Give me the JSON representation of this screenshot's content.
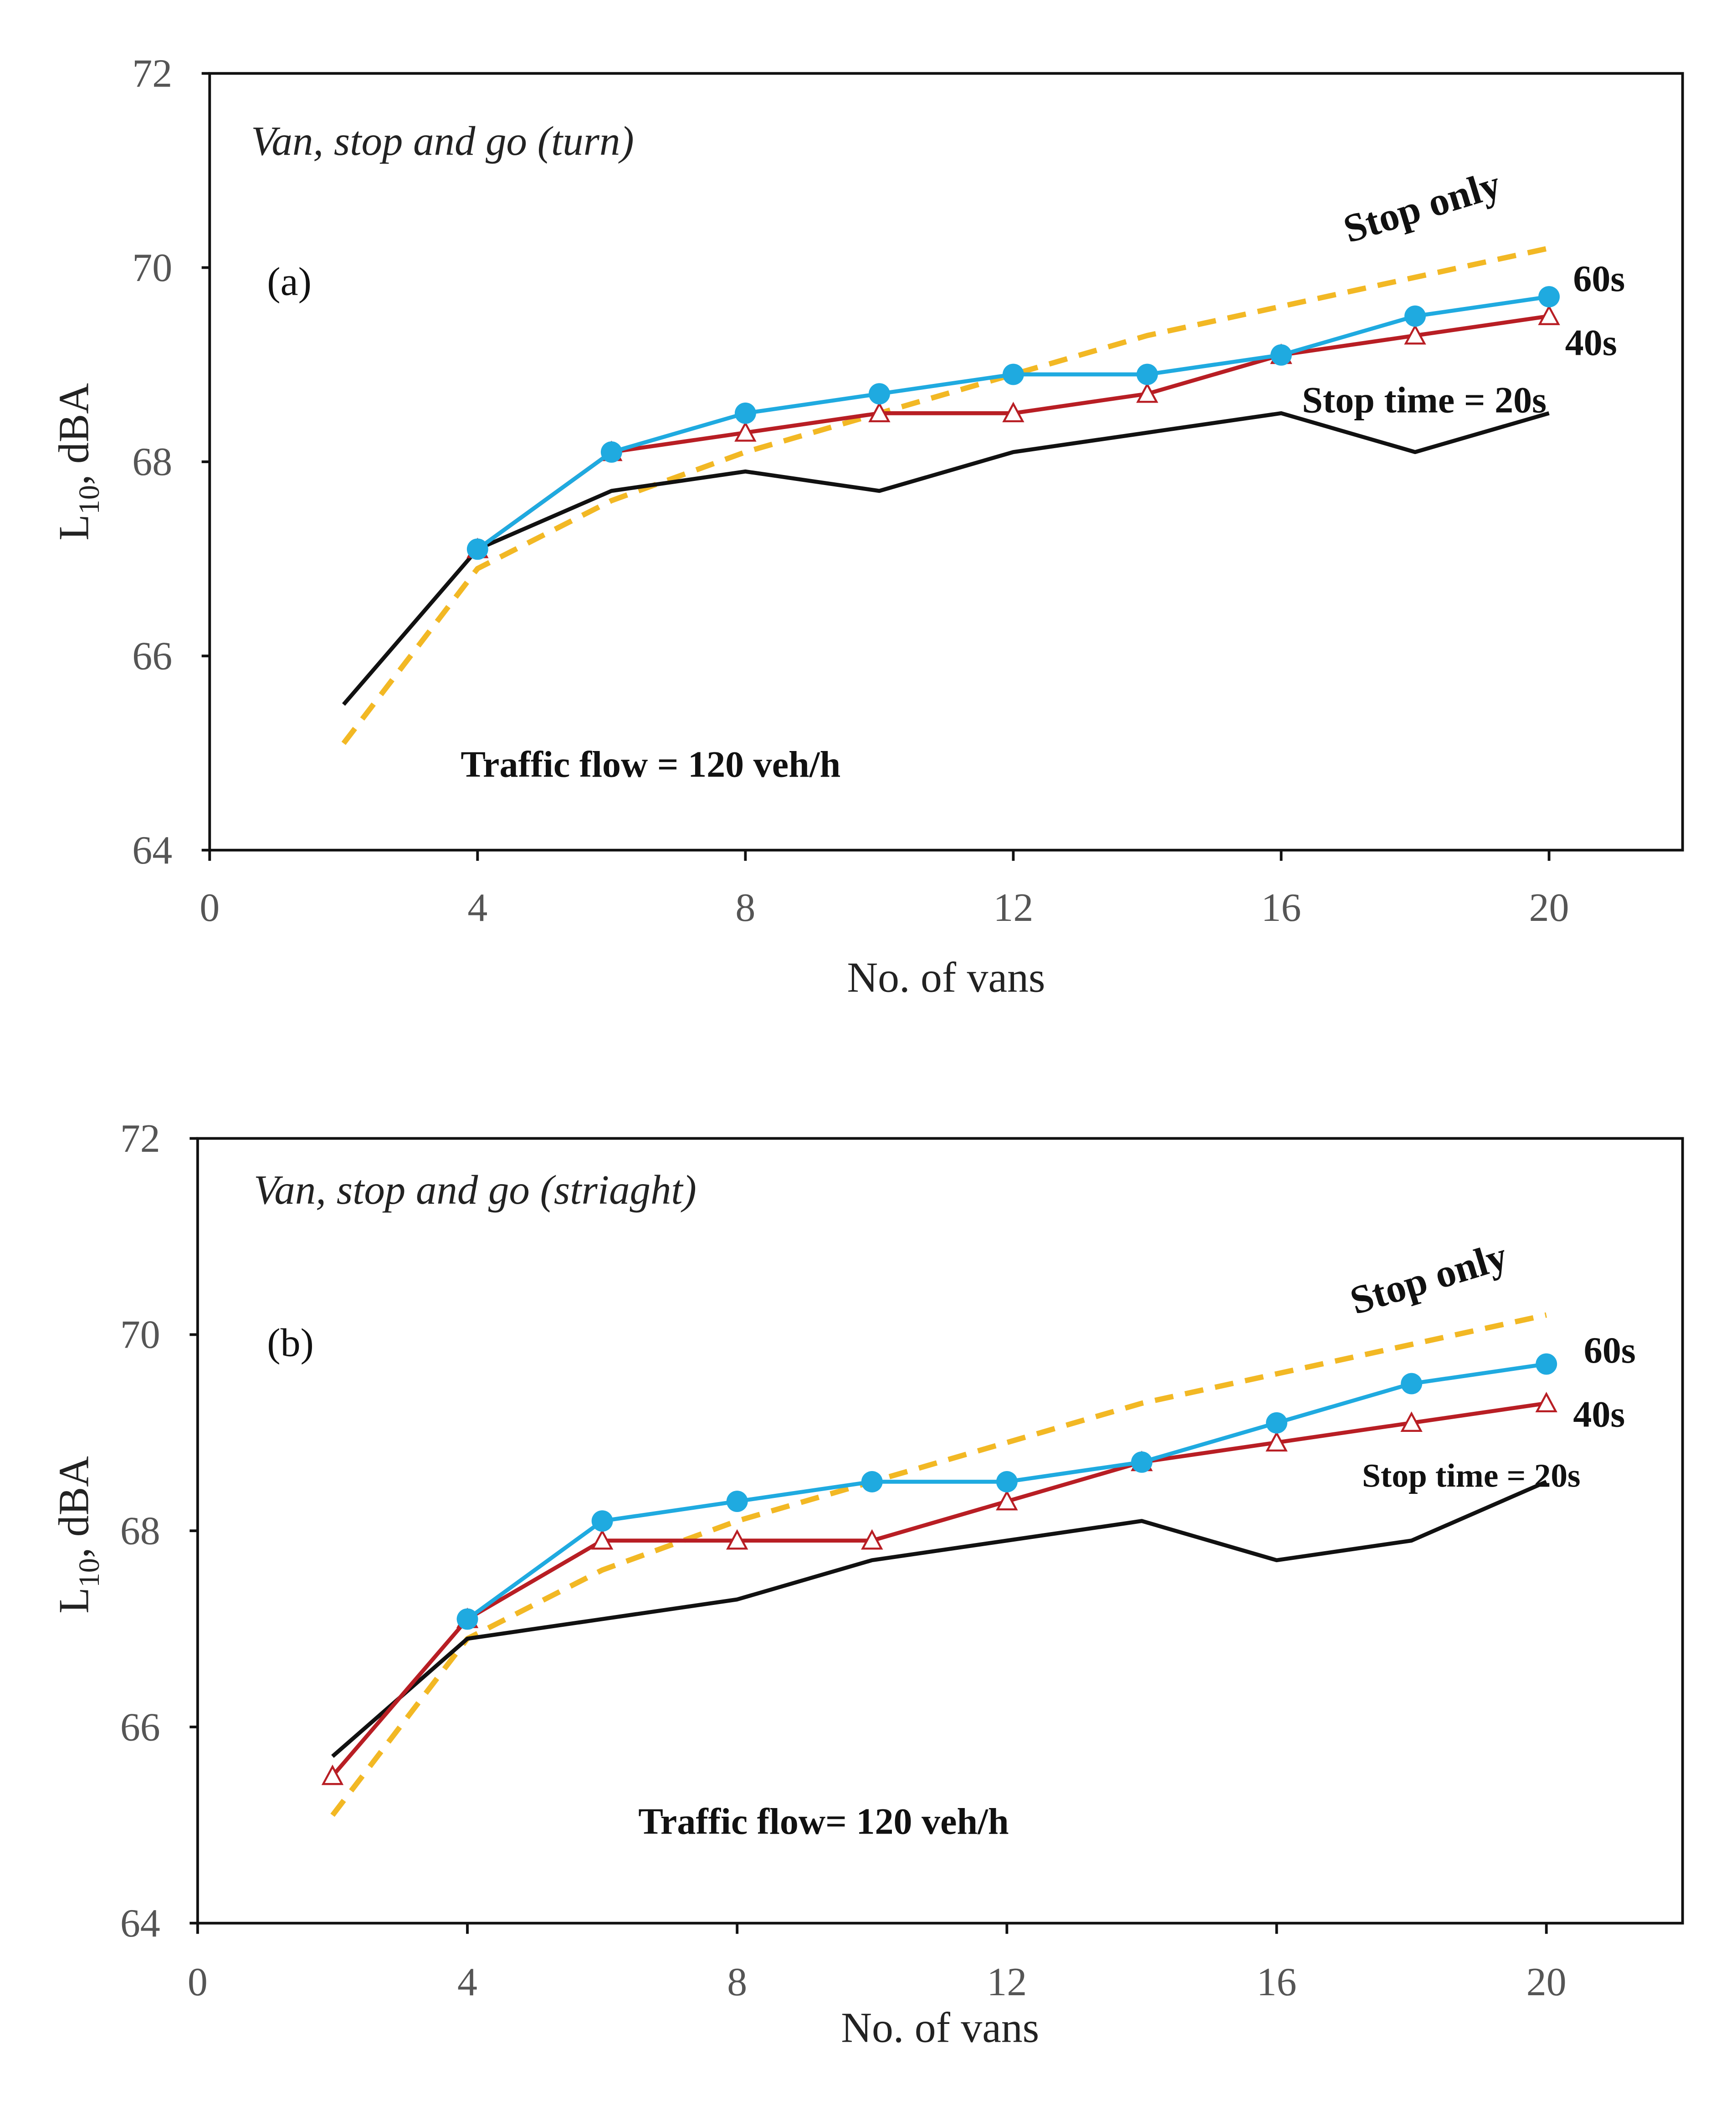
{
  "colors": {
    "stop_only": "#F2B824",
    "s20": "#111111",
    "s40": "#B81E24",
    "s60": "#1FAAE0"
  },
  "chart_data": [
    {
      "type": "line",
      "panel_label": "(a)",
      "title": "Van, stop and go (turn)",
      "xlabel": "No. of vans",
      "ylabel_main": "L",
      "ylabel_sub": "10",
      "ylabel_rest": ", dBA",
      "xlim": [
        0,
        22
      ],
      "ylim": [
        64,
        72
      ],
      "xticks": [
        "0",
        "4",
        "8",
        "12",
        "16",
        "20"
      ],
      "yticks": [
        "64",
        "66",
        "68",
        "70",
        "72"
      ],
      "annotations": {
        "stop_only": "Stop only",
        "s60": "60s",
        "s40": "40s",
        "s20": "Stop time = 20s",
        "flow": "Traffic flow = 120 veh/h"
      },
      "series": [
        {
          "name": "Stop only",
          "key": "stop_only",
          "x": [
            2,
            4,
            6,
            8,
            10,
            12,
            14,
            16,
            18,
            20
          ],
          "values": [
            65.1,
            66.9,
            67.6,
            68.1,
            68.5,
            68.9,
            69.3,
            69.6,
            69.9,
            70.2
          ]
        },
        {
          "name": "Stop time = 20s",
          "key": "s20",
          "x": [
            2,
            4,
            6,
            8,
            10,
            12,
            14,
            16,
            18,
            20
          ],
          "values": [
            65.5,
            67.1,
            67.7,
            67.9,
            67.7,
            68.1,
            68.3,
            68.5,
            68.1,
            68.5
          ]
        },
        {
          "name": "40s",
          "key": "s40",
          "x": [
            4,
            6,
            8,
            10,
            12,
            14,
            16,
            18,
            20
          ],
          "values": [
            67.1,
            68.1,
            68.3,
            68.5,
            68.5,
            68.7,
            69.1,
            69.3,
            69.5
          ]
        },
        {
          "name": "60s",
          "key": "s60",
          "x": [
            4,
            6,
            8,
            10,
            12,
            14,
            16,
            18,
            20
          ],
          "values": [
            67.1,
            68.1,
            68.5,
            68.7,
            68.9,
            68.9,
            69.1,
            69.5,
            69.7
          ]
        }
      ]
    },
    {
      "type": "line",
      "panel_label": "(b)",
      "title": "Van, stop and go (striaght)",
      "xlabel": "No. of vans",
      "ylabel_main": "L",
      "ylabel_sub": "10",
      "ylabel_rest": ", dBA",
      "xlim": [
        0,
        22
      ],
      "ylim": [
        64,
        72
      ],
      "xticks": [
        "0",
        "4",
        "8",
        "12",
        "16",
        "20"
      ],
      "yticks": [
        "64",
        "66",
        "68",
        "70",
        "72"
      ],
      "annotations": {
        "stop_only": "Stop only",
        "s60": "60s",
        "s40": "40s",
        "s20": "Stop time = 20s",
        "flow": "Traffic flow= 120 veh/h"
      },
      "series": [
        {
          "name": "Stop only",
          "key": "stop_only",
          "x": [
            2,
            4,
            6,
            8,
            10,
            12,
            14,
            16,
            18,
            20
          ],
          "values": [
            65.1,
            66.9,
            67.6,
            68.1,
            68.5,
            68.9,
            69.3,
            69.6,
            69.9,
            70.2
          ]
        },
        {
          "name": "Stop time = 20s",
          "key": "s20",
          "x": [
            2,
            4,
            6,
            8,
            10,
            12,
            14,
            16,
            18,
            20
          ],
          "values": [
            65.7,
            66.9,
            67.1,
            67.3,
            67.7,
            67.9,
            68.1,
            67.7,
            67.9,
            68.5
          ]
        },
        {
          "name": "40s",
          "key": "s40",
          "x": [
            2,
            4,
            6,
            8,
            10,
            12,
            14,
            16,
            18,
            20
          ],
          "values": [
            65.5,
            67.1,
            67.9,
            67.9,
            67.9,
            68.3,
            68.7,
            68.9,
            69.1,
            69.3
          ]
        },
        {
          "name": "60s",
          "key": "s60",
          "x": [
            4,
            6,
            8,
            10,
            12,
            14,
            16,
            18,
            20
          ],
          "values": [
            67.1,
            68.1,
            68.3,
            68.5,
            68.5,
            68.7,
            69.1,
            69.5,
            69.7
          ]
        }
      ]
    }
  ]
}
